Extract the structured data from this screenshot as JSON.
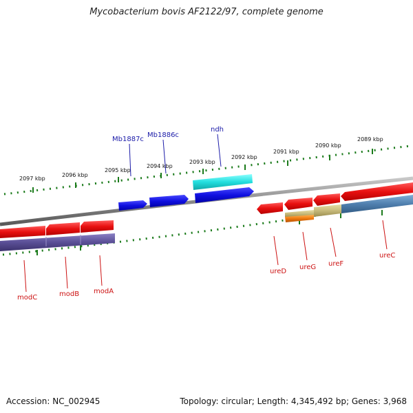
{
  "title": "Mycobacterium bovis AF2122/97, complete genome",
  "footer": {
    "accession": "Accession: NC_002945",
    "summary": "Topology: circular; Length: 4,345,492 bp; Genes: 3,968"
  },
  "kbp_labels": [
    "2097 kbp",
    "2096 kbp",
    "2095 kbp",
    "2094 kbp",
    "2093 kbp",
    "2092 kbp",
    "2091 kbp",
    "2090 kbp",
    "2089 kbp"
  ],
  "forward_gene_labels": [
    "Mb1887c",
    "Mb1886c",
    "ndh"
  ],
  "reverse_gene_labels": [
    "modC",
    "modB",
    "modA",
    "ureD",
    "ureG",
    "ureF",
    "ureC"
  ],
  "colors": {
    "forward_label": "#1a1aa8",
    "reverse_label": "#cc1111",
    "gene_red": "#e81010",
    "gene_blue": "#1010e0",
    "gene_cyan": "#22dede",
    "backbone": "#8a8a8a",
    "tick": "#1a7a1a",
    "mod_band": "#5a4f96",
    "ure_band": "#4f7fae",
    "ure_tan": "#c7ba7a",
    "ure_orange": "#ee7a10"
  }
}
